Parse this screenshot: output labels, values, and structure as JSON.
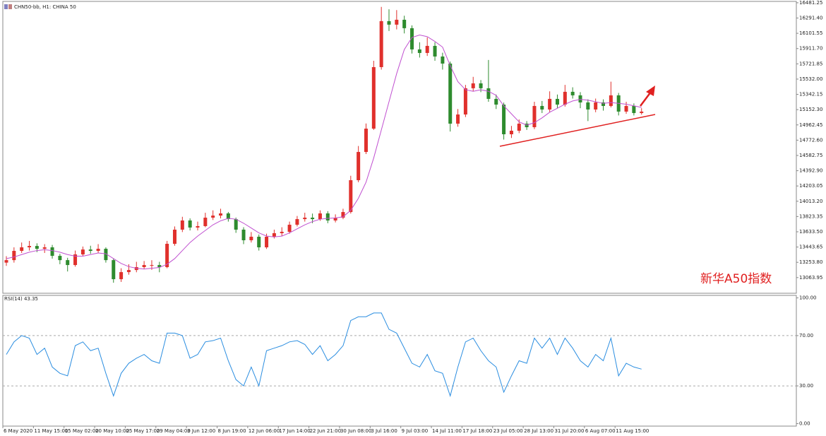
{
  "chart_data": [
    {
      "type": "candlestick",
      "title": "CHN50-bb, H1: CHINA 50",
      "annotation": "新华A50指数",
      "categories": [
        "6 May 2020",
        null,
        null,
        null,
        "11 May 15:00",
        null,
        null,
        null,
        "15 May 02:00",
        null,
        null,
        null,
        "20 May 10:00",
        null,
        null,
        null,
        "25 May 17:00",
        null,
        null,
        null,
        "29 May 04:00",
        null,
        null,
        null,
        "3 Jun 12:00",
        null,
        null,
        null,
        "8 Jun 19:00",
        null,
        null,
        null,
        "12 Jun 06:00",
        null,
        null,
        null,
        "17 Jun 14:00",
        null,
        null,
        null,
        "22 Jun 21:00",
        null,
        null,
        null,
        "30 Jun 08:00",
        null,
        null,
        null,
        "3 Jul 16:00",
        null,
        null,
        null,
        "9 Jul 03:00",
        null,
        null,
        null,
        "14 Jul 11:00",
        null,
        null,
        null,
        "17 Jul 18:00",
        null,
        null,
        null,
        "23 Jul 05:00",
        null,
        null,
        null,
        "28 Jul 13:00",
        null,
        null,
        null,
        "31 Jul 20:00",
        null,
        null,
        null,
        "6 Aug 07:00",
        null,
        null,
        null,
        "11 Aug 15:00",
        null,
        null,
        null
      ],
      "open": [
        13250,
        13281,
        13396,
        13440,
        13457,
        13422,
        13440,
        13334,
        13281,
        13220,
        13352,
        13413,
        13396,
        13422,
        13281,
        13044,
        13132,
        13158,
        13194,
        13220,
        13220,
        13194,
        13484,
        13660,
        13774,
        13686,
        13704,
        13809,
        13835,
        13862,
        13791,
        13660,
        13528,
        13572,
        13440,
        13572,
        13616,
        13633,
        13721,
        13791,
        13809,
        13791,
        13862,
        13774,
        13809,
        13879,
        14275,
        14626,
        14916,
        15681,
        16253,
        16209,
        16270,
        16165,
        15901,
        15857,
        15945,
        15813,
        15725,
        14978,
        15092,
        15418,
        15479,
        15418,
        15286,
        15215,
        14846,
        14890,
        14978,
        14934,
        15198,
        15154,
        15286,
        15215,
        15374,
        15330,
        15242,
        15154,
        15242,
        15198,
        15330,
        15128,
        15198,
        15110
      ],
      "high": [
        13330,
        13440,
        13500,
        13520,
        13490,
        13480,
        13470,
        13360,
        13310,
        13400,
        13450,
        13460,
        13480,
        13440,
        13300,
        13180,
        13230,
        13260,
        13270,
        13280,
        13260,
        13520,
        13700,
        13820,
        13800,
        13760,
        13870,
        13900,
        13920,
        13880,
        13810,
        13690,
        13630,
        13600,
        13610,
        13660,
        13690,
        13760,
        13830,
        13870,
        13860,
        13900,
        13890,
        13850,
        13920,
        14330,
        14700,
        14980,
        15760,
        16430,
        16400,
        16390,
        16320,
        16200,
        15990,
        16050,
        15990,
        15860,
        15750,
        15160,
        15460,
        15560,
        15520,
        15770,
        15340,
        15240,
        14950,
        15030,
        15010,
        15250,
        15260,
        15380,
        15340,
        15460,
        15430,
        15370,
        15280,
        15290,
        15280,
        15500,
        15360,
        15250,
        15230,
        15170
      ],
      "low": [
        13210,
        13250,
        13370,
        13400,
        13380,
        13370,
        13300,
        13230,
        13140,
        13200,
        13330,
        13360,
        13370,
        13250,
        13000,
        13010,
        13100,
        13130,
        13170,
        13160,
        13130,
        13180,
        13460,
        13630,
        13650,
        13650,
        13690,
        13780,
        13800,
        13760,
        13620,
        13480,
        13500,
        13400,
        13420,
        13550,
        13580,
        13610,
        13700,
        13760,
        13740,
        13770,
        13740,
        13750,
        13790,
        13860,
        14250,
        14600,
        14900,
        15650,
        16130,
        16150,
        16100,
        15850,
        15800,
        15820,
        15760,
        15650,
        14880,
        14940,
        15060,
        15380,
        15370,
        15250,
        15160,
        14780,
        14800,
        14860,
        14900,
        14910,
        15110,
        15120,
        15170,
        15190,
        15290,
        15170,
        15010,
        15120,
        15140,
        15180,
        15080,
        15100,
        15080,
        15090
      ],
      "close": [
        13281,
        13396,
        13440,
        13457,
        13422,
        13440,
        13334,
        13281,
        13220,
        13352,
        13413,
        13396,
        13422,
        13281,
        13044,
        13132,
        13158,
        13194,
        13220,
        13220,
        13194,
        13484,
        13660,
        13774,
        13686,
        13704,
        13809,
        13835,
        13862,
        13791,
        13660,
        13528,
        13572,
        13440,
        13572,
        13616,
        13633,
        13721,
        13791,
        13809,
        13791,
        13862,
        13774,
        13809,
        13879,
        14275,
        14626,
        14916,
        15681,
        16253,
        16209,
        16270,
        16165,
        15901,
        15857,
        15945,
        15813,
        15725,
        14978,
        15092,
        15418,
        15479,
        15418,
        15286,
        15215,
        14846,
        14890,
        14978,
        14934,
        15198,
        15154,
        15286,
        15215,
        15374,
        15330,
        15242,
        15154,
        15242,
        15198,
        15330,
        15128,
        15198,
        15110,
        15128
      ],
      "up_color": "#e0302c",
      "down_color": "#2e8b2e",
      "ma": {
        "color": "#c050d0",
        "values": [
          13300,
          13320,
          13350,
          13380,
          13400,
          13410,
          13400,
          13380,
          13350,
          13330,
          13330,
          13350,
          13370,
          13360,
          13300,
          13240,
          13200,
          13180,
          13170,
          13180,
          13190,
          13230,
          13300,
          13400,
          13500,
          13580,
          13650,
          13720,
          13770,
          13800,
          13790,
          13740,
          13680,
          13620,
          13580,
          13570,
          13580,
          13620,
          13670,
          13720,
          13760,
          13790,
          13800,
          13805,
          13820,
          13900,
          14050,
          14250,
          14550,
          14900,
          15250,
          15600,
          15900,
          16050,
          16080,
          16060,
          16000,
          15930,
          15700,
          15500,
          15400,
          15380,
          15400,
          15380,
          15330,
          15200,
          15100,
          15000,
          14960,
          14990,
          15050,
          15120,
          15170,
          15220,
          15260,
          15280,
          15270,
          15250,
          15230,
          15240,
          15230,
          15220,
          15200,
          15180
        ]
      },
      "ylim": [
        12869,
        16498
      ],
      "yticks": [
        16481.25,
        {
          "value": 16291.4,
          "label": "16291.40"
        },
        16101.55,
        {
          "value": 15911.7,
          "label": "15911.70"
        },
        15721.85,
        {
          "value": 15532,
          "label": "15532.00"
        },
        15342.15,
        {
          "value": 15152.3,
          "label": "15152.30"
        },
        14962.45,
        {
          "value": 14772.6,
          "label": "14772.60"
        },
        14582.75,
        {
          "value": 14392.9,
          "label": "14392.90"
        },
        14203.05,
        {
          "value": 14013.2,
          "label": "14013.20"
        },
        13823.35,
        {
          "value": 13633.5,
          "label": "13633.50"
        },
        13443.65,
        {
          "value": 13253.8,
          "label": "13253.80"
        },
        13063.95
      ]
    },
    {
      "type": "line",
      "title": "RSI(14) 43.35",
      "color": "#2a8de0",
      "values": [
        55,
        65,
        70,
        68,
        55,
        60,
        45,
        40,
        38,
        62,
        65,
        58,
        60,
        40,
        22,
        40,
        48,
        52,
        55,
        50,
        48,
        72,
        72,
        70,
        52,
        55,
        65,
        66,
        68,
        50,
        35,
        30,
        45,
        30,
        58,
        60,
        62,
        65,
        66,
        63,
        55,
        62,
        50,
        55,
        62,
        82,
        85,
        85,
        88,
        88,
        75,
        72,
        60,
        48,
        45,
        55,
        42,
        40,
        22,
        45,
        65,
        68,
        58,
        50,
        45,
        25,
        38,
        50,
        48,
        68,
        60,
        68,
        55,
        68,
        60,
        50,
        45,
        55,
        50,
        68,
        38,
        48,
        45,
        43.35
      ],
      "ylim": [
        -2,
        102
      ],
      "yticks": [
        {
          "value": 100,
          "label": "100.00"
        },
        {
          "value": 70,
          "label": "70.00"
        },
        {
          "value": 30,
          "label": "30.00"
        },
        {
          "value": 0,
          "label": "0.00"
        }
      ]
    }
  ]
}
